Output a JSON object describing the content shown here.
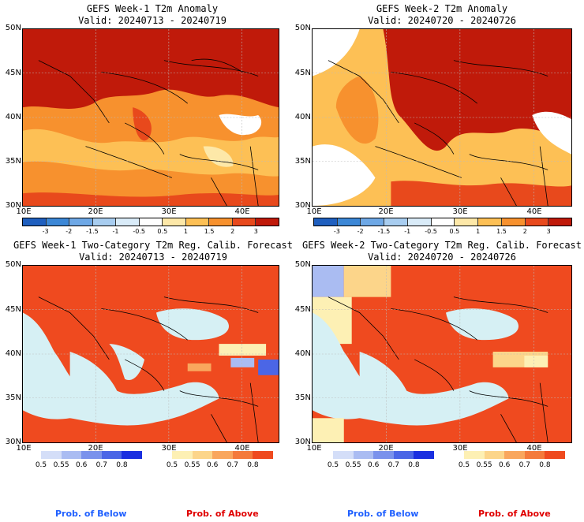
{
  "panels": [
    {
      "title": "GEFS Week-1 T2m Anomaly",
      "valid": "Valid: 20240713 - 20240719"
    },
    {
      "title": "GEFS Week-2 T2m Anomaly",
      "valid": "Valid: 20240720 - 20240726"
    },
    {
      "title": "GEFS Week-1 Two-Category T2m Reg. Calib. Forecast",
      "valid": "Valid: 20240713 - 20240719"
    },
    {
      "title": "GEFS Week-2 Two-Category T2m Reg. Calib. Forecast",
      "valid": "Valid: 20240720 - 20240726"
    }
  ],
  "lat_labels": [
    "50N",
    "45N",
    "40N",
    "35N",
    "30N"
  ],
  "lon_labels": [
    "10E",
    "20E",
    "30E",
    "40E"
  ],
  "anomaly_scale": {
    "labels": [
      "-3",
      "-2",
      "-1.5",
      "-1",
      "-0.5",
      "0.5",
      "1",
      "1.5",
      "2",
      "3"
    ],
    "colors": [
      "#1f5fbf",
      "#3c87d6",
      "#6ea8e6",
      "#a8cdf0",
      "#d9ebf8",
      "#ffffff",
      "#fde8a8",
      "#fdc055",
      "#f7912e",
      "#e8491c",
      "#c01a0a"
    ]
  },
  "prob_below_scale": {
    "labels": [
      "0.5",
      "0.55",
      "0.6",
      "0.7",
      "0.8"
    ],
    "colors": [
      "#d4def8",
      "#aabcf2",
      "#7a92ec",
      "#4b66e6",
      "#1a2fe0"
    ]
  },
  "prob_above_scale": {
    "labels": [
      "0.5",
      "0.55",
      "0.6",
      "0.7",
      "0.8"
    ],
    "colors": [
      "#fdf0b4",
      "#fcd58a",
      "#f9a65d",
      "#f47a3b",
      "#ef4a1f"
    ]
  },
  "legend": {
    "below": "Prob. of Below",
    "above": "Prob. of Above"
  },
  "colors": {
    "below_label": "#2060ff",
    "above_label": "#e00000",
    "sea_prob": "#d6f0f4"
  }
}
